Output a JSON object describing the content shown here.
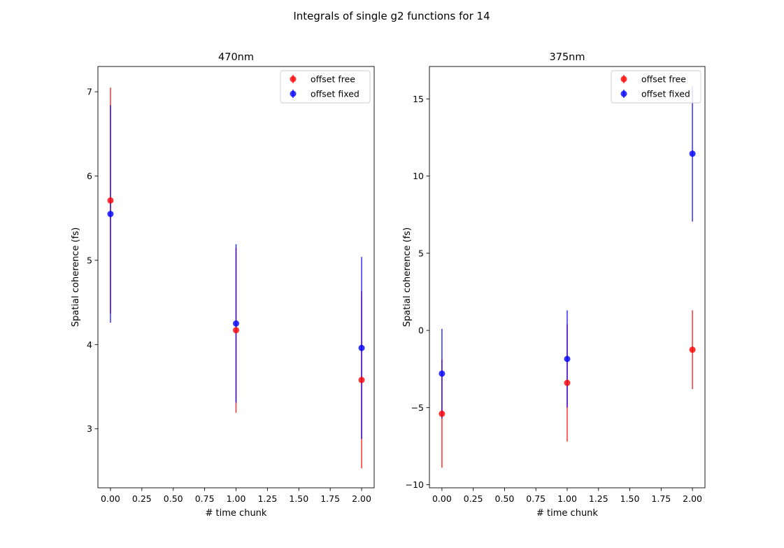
{
  "figure_title": "Integrals of single g2 functions for 14",
  "chart_data": [
    {
      "type": "scatter",
      "title": "470nm",
      "xlabel": "# time chunk",
      "ylabel": "Spatial coherence (fs)",
      "xlim": [
        -0.1,
        2.1
      ],
      "ylim": [
        2.3,
        7.3
      ],
      "xticks": [
        0.0,
        0.25,
        0.5,
        0.75,
        1.0,
        1.25,
        1.5,
        1.75,
        2.0
      ],
      "xtick_labels": [
        "0.00",
        "0.25",
        "0.50",
        "0.75",
        "1.00",
        "1.25",
        "1.50",
        "1.75",
        "2.00"
      ],
      "yticks": [
        3,
        4,
        5,
        6,
        7
      ],
      "ytick_labels": [
        "3",
        "4",
        "5",
        "6",
        "7"
      ],
      "legend_position": "top-right",
      "grid": false,
      "series": [
        {
          "name": "offset free",
          "color": "#ff0000",
          "x": [
            0,
            1,
            2
          ],
          "y": [
            5.71,
            4.17,
            3.58
          ],
          "yerr": [
            1.34,
            0.98,
            1.05
          ]
        },
        {
          "name": "offset fixed",
          "color": "#0000ff",
          "x": [
            0,
            1,
            2
          ],
          "y": [
            5.55,
            4.25,
            3.96
          ],
          "yerr": [
            1.29,
            0.94,
            1.08
          ]
        }
      ]
    },
    {
      "type": "scatter",
      "title": "375nm",
      "xlabel": "# time chunk",
      "ylabel": "Spatial coherence (fs)",
      "xlim": [
        -0.1,
        2.1
      ],
      "ylim": [
        -10.2,
        17.1
      ],
      "xticks": [
        0.0,
        0.25,
        0.5,
        0.75,
        1.0,
        1.25,
        1.5,
        1.75,
        2.0
      ],
      "xtick_labels": [
        "0.00",
        "0.25",
        "0.50",
        "0.75",
        "1.00",
        "1.25",
        "1.50",
        "1.75",
        "2.00"
      ],
      "yticks": [
        -10,
        -5,
        0,
        5,
        10,
        15
      ],
      "ytick_labels": [
        "−10",
        "−5",
        "0",
        "5",
        "10",
        "15"
      ],
      "legend_position": "top-right",
      "grid": false,
      "series": [
        {
          "name": "offset free",
          "color": "#ff0000",
          "x": [
            0,
            1,
            2
          ],
          "y": [
            -5.4,
            -3.4,
            -1.25
          ],
          "yerr": [
            3.5,
            3.8,
            2.55
          ]
        },
        {
          "name": "offset fixed",
          "color": "#0000ff",
          "x": [
            0,
            1,
            2
          ],
          "y": [
            -2.8,
            -1.85,
            11.45
          ],
          "yerr": [
            2.9,
            3.15,
            4.4
          ]
        }
      ]
    }
  ]
}
